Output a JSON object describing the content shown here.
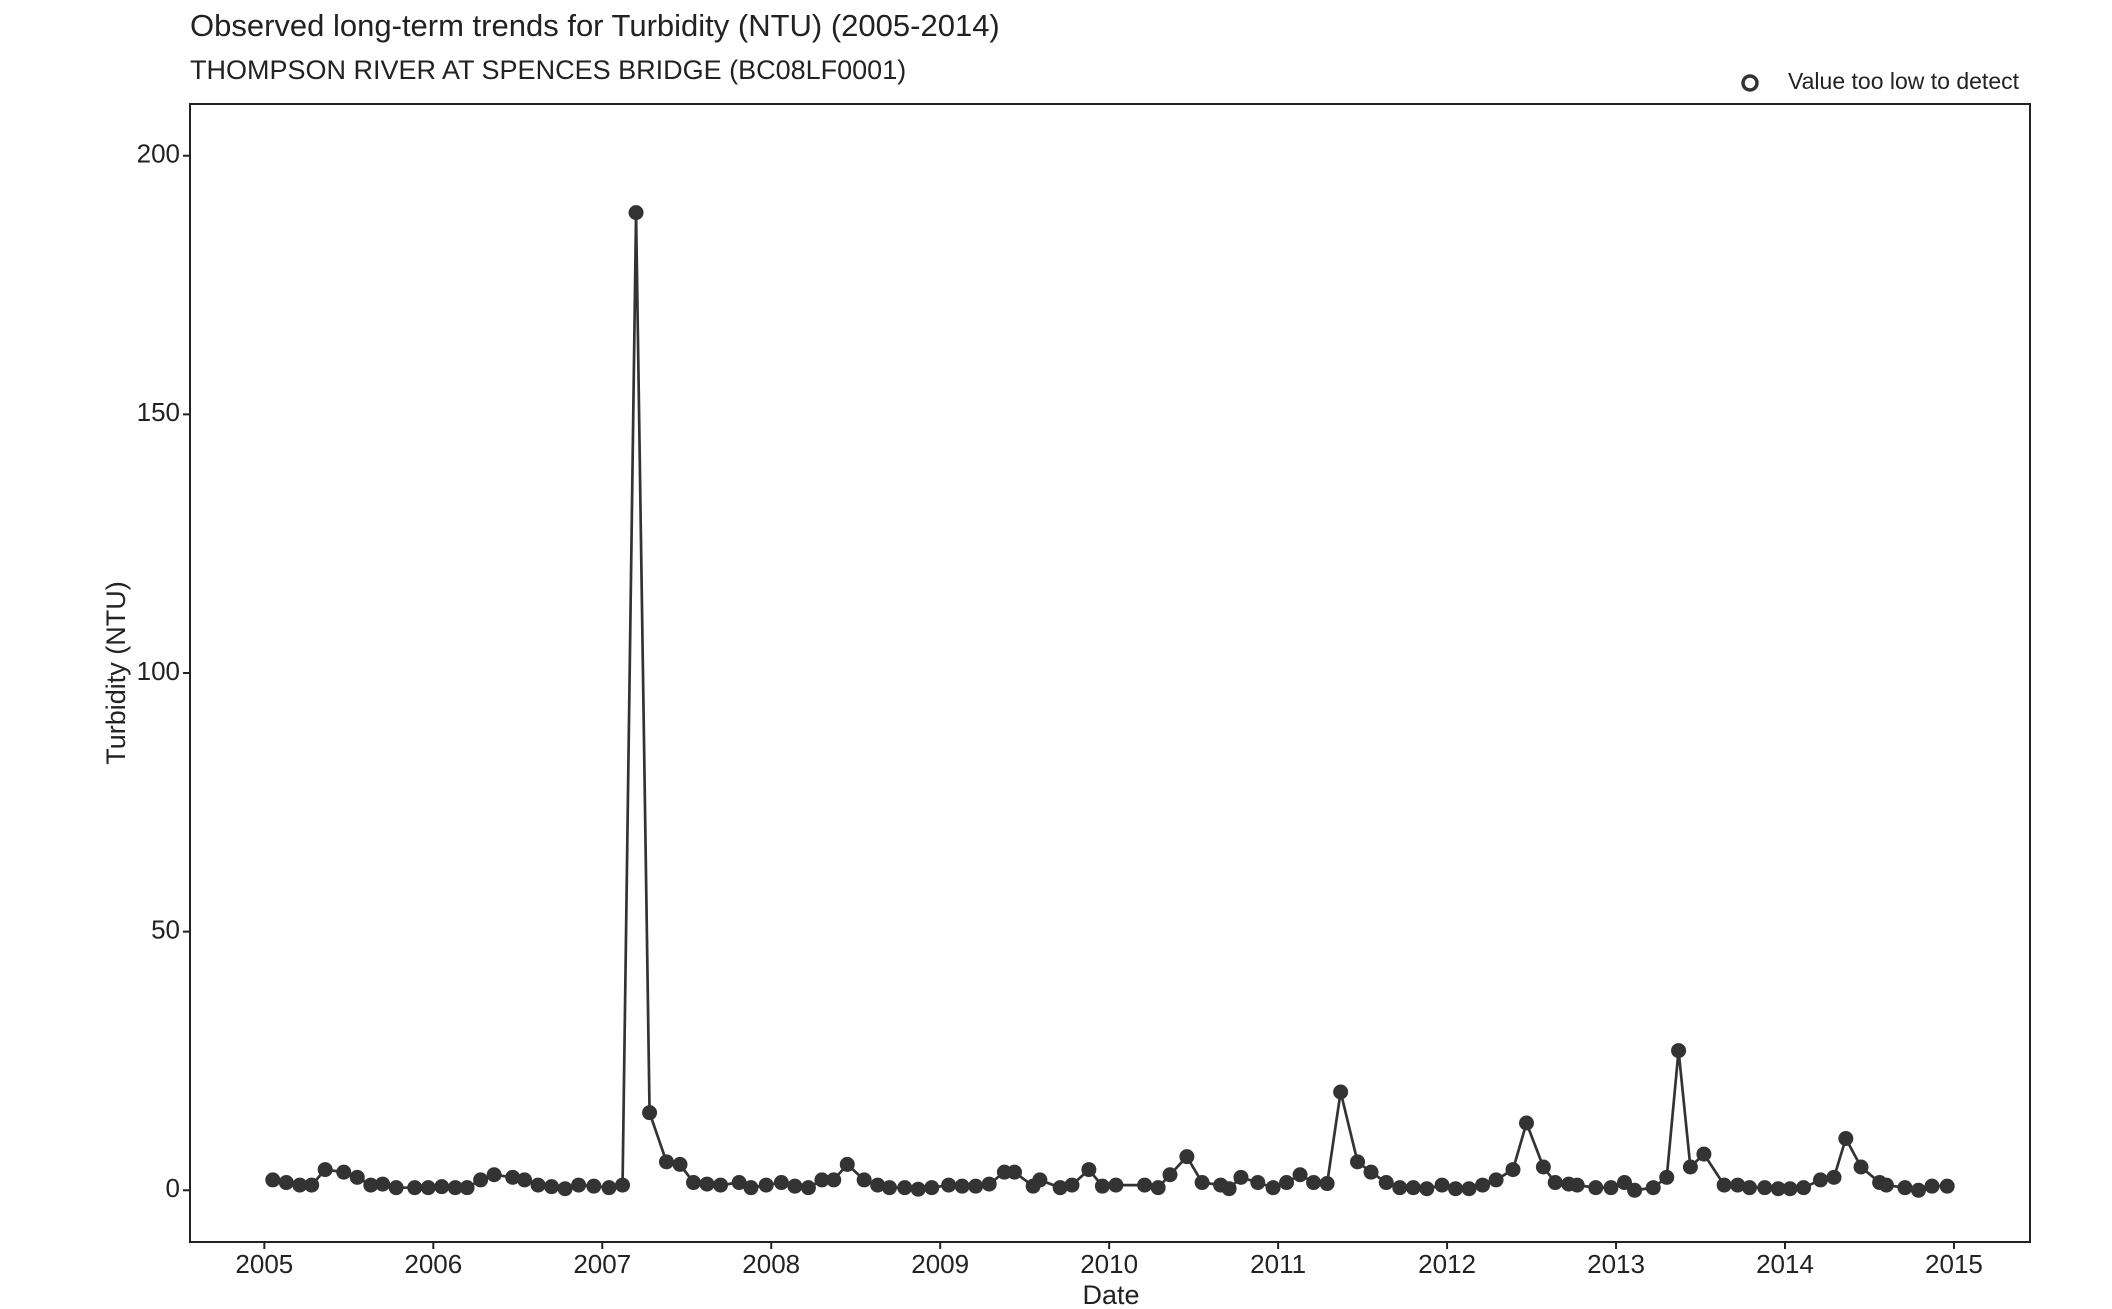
{
  "chart_data": {
    "type": "line",
    "title": "Observed long-term trends for Turbidity (NTU) (2005-2014)",
    "subtitle": "THOMPSON RIVER AT SPENCES BRIDGE (BC08LF0001)",
    "x_label": "Date",
    "y_label": "Turbidity (NTU)",
    "legend_label": "Value too low to detect",
    "color": "#333333",
    "x": [
      2005.05,
      2005.13,
      2005.21,
      2005.28,
      2005.36,
      2005.47,
      2005.55,
      2005.63,
      2005.7,
      2005.78,
      2005.89,
      2005.97,
      2006.05,
      2006.13,
      2006.2,
      2006.28,
      2006.36,
      2006.47,
      2006.54,
      2006.62,
      2006.7,
      2006.78,
      2006.86,
      2006.95,
      2007.04,
      2007.12,
      2007.2,
      2007.28,
      2007.38,
      2007.46,
      2007.54,
      2007.62,
      2007.7,
      2007.81,
      2007.88,
      2007.97,
      2008.06,
      2008.14,
      2008.22,
      2008.3,
      2008.37,
      2008.45,
      2008.55,
      2008.63,
      2008.7,
      2008.79,
      2008.87,
      2008.95,
      2009.05,
      2009.13,
      2009.21,
      2009.29,
      2009.38,
      2009.44,
      2009.55,
      2009.59,
      2009.71,
      2009.78,
      2009.88,
      2009.96,
      2010.04,
      2010.21,
      2010.29,
      2010.36,
      2010.46,
      2010.55,
      2010.66,
      2010.71,
      2010.78,
      2010.88,
      2010.97,
      2011.05,
      2011.13,
      2011.21,
      2011.29,
      2011.37,
      2011.47,
      2011.55,
      2011.64,
      2011.72,
      2011.8,
      2011.88,
      2011.97,
      2012.05,
      2012.13,
      2012.21,
      2012.29,
      2012.39,
      2012.47,
      2012.57,
      2012.64,
      2012.72,
      2012.77,
      2012.88,
      2012.97,
      2013.05,
      2013.11,
      2013.22,
      2013.3,
      2013.37,
      2013.44,
      2013.52,
      2013.64,
      2013.72,
      2013.79,
      2013.88,
      2013.96,
      2014.03,
      2014.11,
      2014.21,
      2014.29,
      2014.36,
      2014.45,
      2014.56,
      2014.6,
      2014.71,
      2014.79,
      2014.87,
      2014.96
    ],
    "values": [
      2,
      1.5,
      1,
      1,
      4,
      3.5,
      2.5,
      1,
      1.2,
      0.5,
      0.5,
      0.5,
      0.7,
      0.5,
      0.5,
      2,
      3,
      2.5,
      2,
      1,
      0.7,
      0.3,
      1,
      0.8,
      0.5,
      1,
      189,
      15,
      5.5,
      5,
      1.5,
      1.2,
      1,
      1.5,
      0.5,
      1,
      1.5,
      0.8,
      0.5,
      2,
      2,
      5,
      2,
      1,
      0.5,
      0.5,
      0.2,
      0.5,
      1,
      0.8,
      0.8,
      1.2,
      3.5,
      3.5,
      0.8,
      2,
      0.5,
      1,
      4,
      0.8,
      1,
      1,
      0.5,
      3,
      6.5,
      1.5,
      1,
      0.3,
      2.5,
      1.5,
      0.5,
      1.5,
      3,
      1.5,
      1.3,
      19,
      5.5,
      3.5,
      1.5,
      0.5,
      0.5,
      0.3,
      1,
      0.3,
      0.3,
      1,
      2,
      4,
      13,
      4.5,
      1.5,
      1.2,
      1,
      0.5,
      0.5,
      1.5,
      0,
      0.5,
      2.5,
      27,
      4.5,
      7,
      1,
      1,
      0.5,
      0.5,
      0.3,
      0.3,
      0.5,
      2,
      2.5,
      10,
      4.5,
      1.5,
      1,
      0.5,
      0,
      0.8,
      0.8
    ],
    "xlim": [
      2004.56,
      2015.45
    ],
    "xticks": [
      2005,
      2006,
      2007,
      2008,
      2009,
      2010,
      2011,
      2012,
      2013,
      2014,
      2015
    ],
    "ylim": [
      -10,
      210
    ],
    "yticks": [
      0,
      50,
      100,
      150,
      200
    ]
  }
}
